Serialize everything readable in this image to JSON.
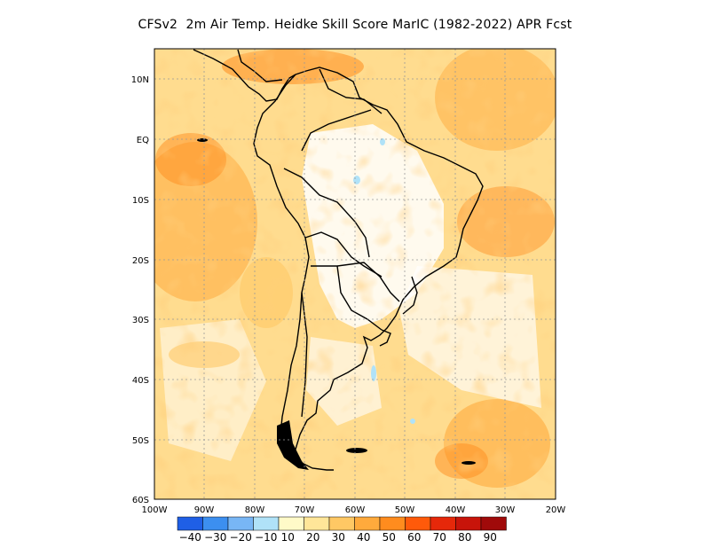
{
  "title": "CFSv2  2m Air Temp. Heidke Skill Score MarIC (1982-2022) APR Fcst",
  "map": {
    "lon_range": [
      -100,
      -20
    ],
    "lat_range": [
      -60,
      15
    ],
    "lon_ticks": [
      "100W",
      "90W",
      "80W",
      "70W",
      "60W",
      "50W",
      "40W",
      "30W",
      "20W"
    ],
    "lat_ticks": [
      "10N",
      "EQ",
      "10S",
      "20S",
      "30S",
      "40S",
      "50S",
      "60S"
    ],
    "grid": "dotted"
  },
  "colorbar": {
    "labels": [
      "-40",
      "-30",
      "-20",
      "-10",
      "10",
      "20",
      "30",
      "40",
      "50",
      "60",
      "70",
      "80",
      "90"
    ],
    "colors": [
      "#1f5fe6",
      "#3c8ff0",
      "#78b6f5",
      "#b0e2f8",
      "#fffac8",
      "#ffe699",
      "#ffc864",
      "#ffaa3c",
      "#ff8c1e",
      "#ff5a0a",
      "#e6280a",
      "#c8140a",
      "#a00a0a"
    ]
  }
}
